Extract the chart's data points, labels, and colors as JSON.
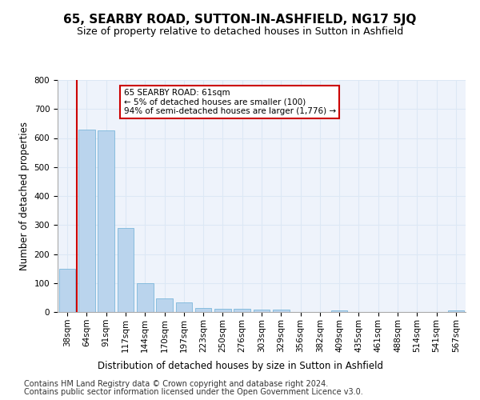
{
  "title": "65, SEARBY ROAD, SUTTON-IN-ASHFIELD, NG17 5JQ",
  "subtitle": "Size of property relative to detached houses in Sutton in Ashfield",
  "xlabel": "Distribution of detached houses by size in Sutton in Ashfield",
  "ylabel": "Number of detached properties",
  "categories": [
    "38sqm",
    "64sqm",
    "91sqm",
    "117sqm",
    "144sqm",
    "170sqm",
    "197sqm",
    "223sqm",
    "250sqm",
    "276sqm",
    "303sqm",
    "329sqm",
    "356sqm",
    "382sqm",
    "409sqm",
    "435sqm",
    "461sqm",
    "488sqm",
    "514sqm",
    "541sqm",
    "567sqm"
  ],
  "values": [
    150,
    630,
    625,
    290,
    100,
    48,
    32,
    13,
    10,
    10,
    7,
    7,
    0,
    0,
    5,
    0,
    0,
    0,
    0,
    0,
    5
  ],
  "bar_color": "#bad4ed",
  "bar_edge_color": "#6baed6",
  "annotation_text": "65 SEARBY ROAD: 61sqm\n← 5% of detached houses are smaller (100)\n94% of semi-detached houses are larger (1,776) →",
  "annotation_box_color": "#ffffff",
  "annotation_box_edge": "#cc0000",
  "footer_line1": "Contains HM Land Registry data © Crown copyright and database right 2024.",
  "footer_line2": "Contains public sector information licensed under the Open Government Licence v3.0.",
  "ylim": [
    0,
    800
  ],
  "yticks": [
    0,
    100,
    200,
    300,
    400,
    500,
    600,
    700,
    800
  ],
  "grid_color": "#dce8f5",
  "bg_color": "#eef3fb",
  "highlight_line_color": "#cc0000",
  "title_fontsize": 10,
  "subtitle_fontsize": 9,
  "axis_label_fontsize": 8.5,
  "tick_fontsize": 7.5,
  "footer_fontsize": 7
}
